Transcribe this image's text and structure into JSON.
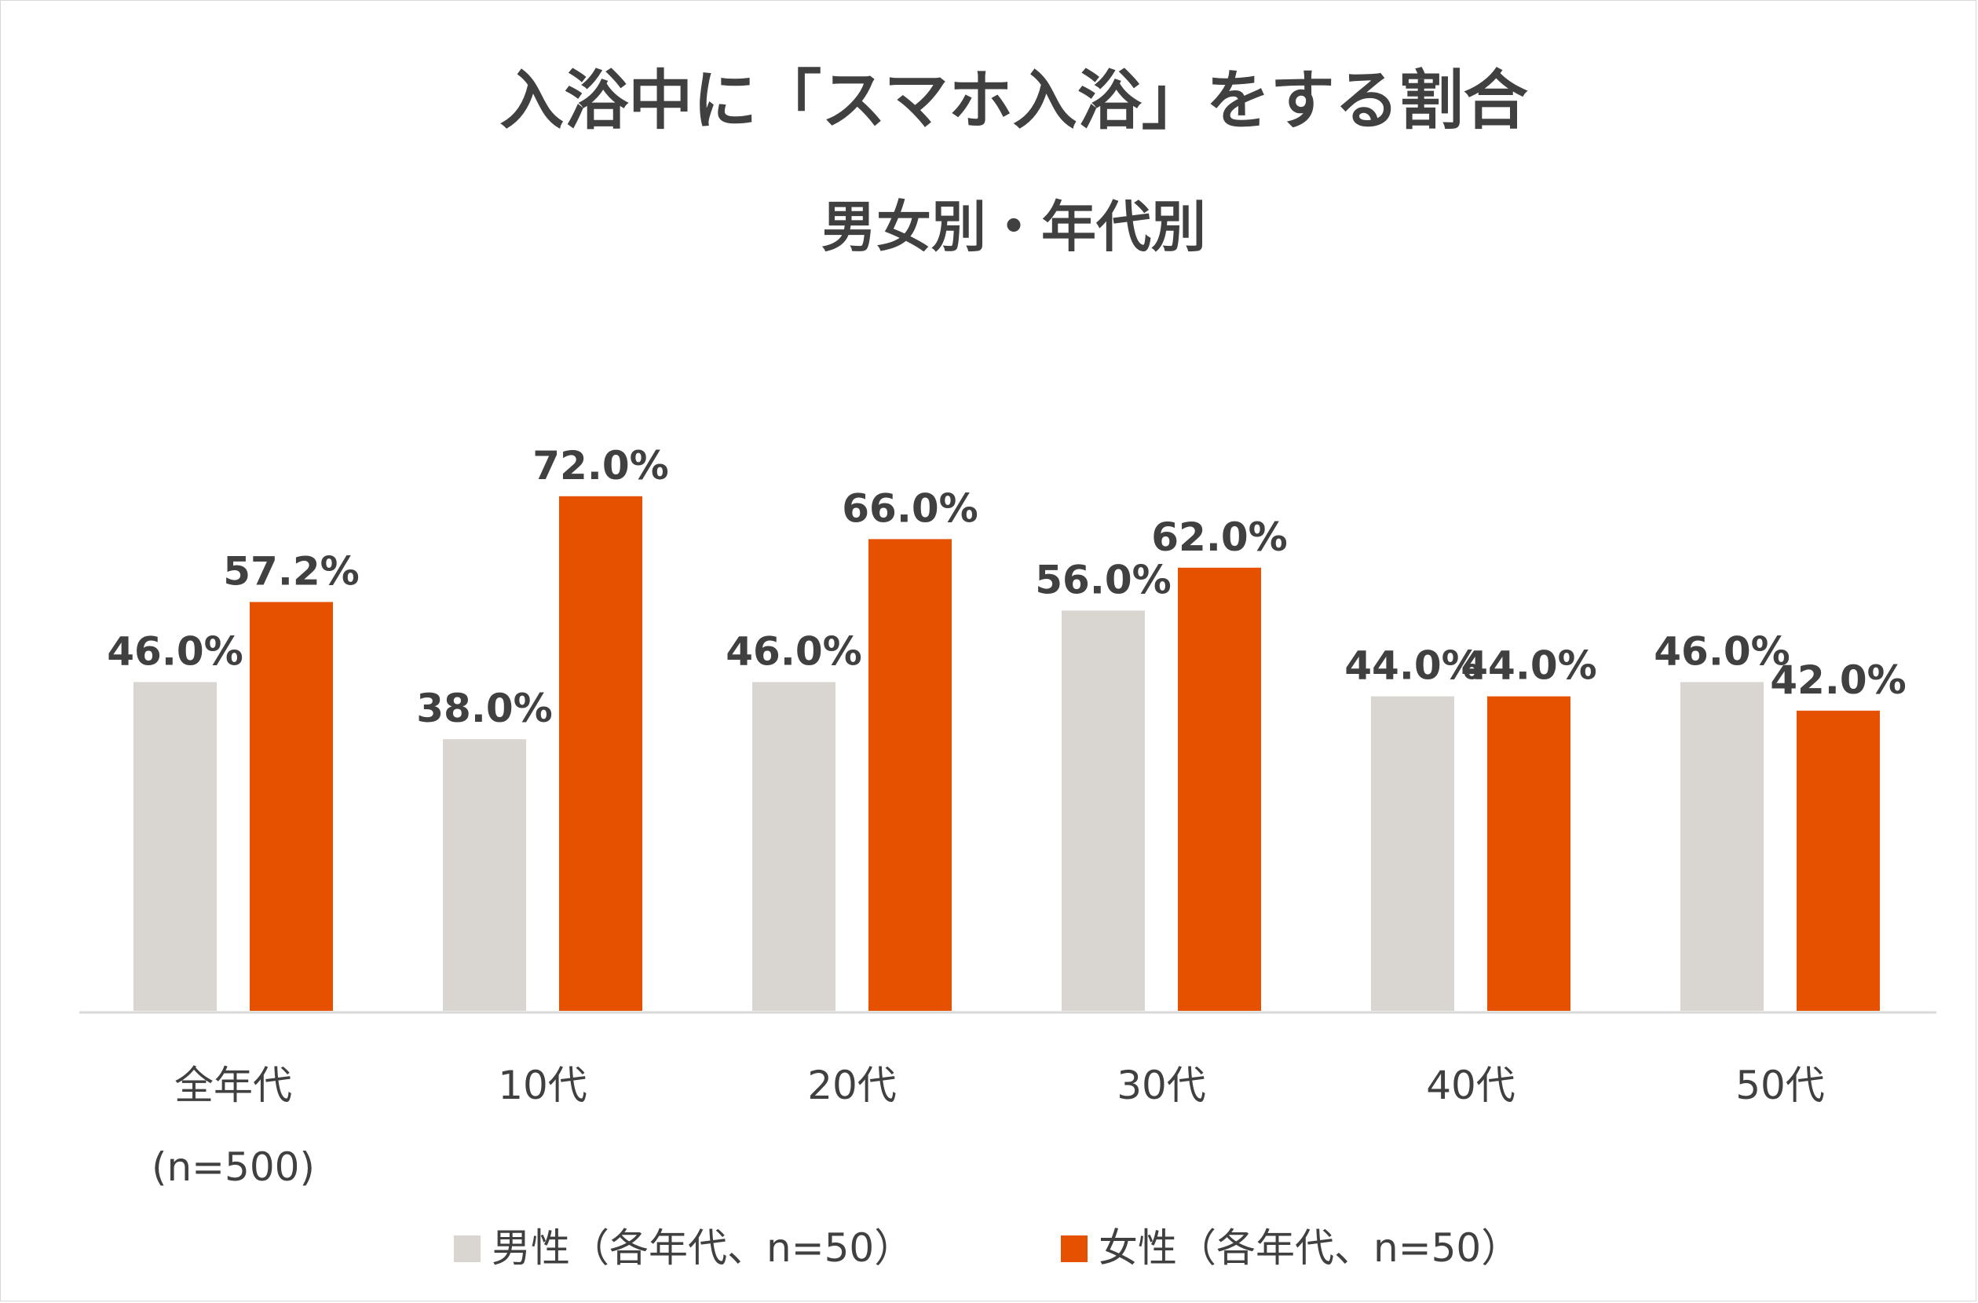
{
  "chart_data": {
    "type": "bar",
    "title": "入浴中に「スマホ入浴」をする割合",
    "subtitle": "男女別・年代別",
    "categories": [
      [
        "全年代",
        "(n=500)"
      ],
      [
        "10代"
      ],
      [
        "20代"
      ],
      [
        "30代"
      ],
      [
        "40代"
      ],
      [
        "50代"
      ]
    ],
    "series": [
      {
        "name": "男性（各年代、n=50）",
        "color": "#d9d5d0",
        "values": [
          46.0,
          38.0,
          46.0,
          56.0,
          44.0,
          46.0
        ],
        "labels": [
          "46.0%",
          "38.0%",
          "46.0%",
          "56.0%",
          "44.0%",
          "46.0%"
        ]
      },
      {
        "name": "女性（各年代、n=50）",
        "color": "#e65100",
        "values": [
          57.2,
          72.0,
          66.0,
          62.0,
          44.0,
          42.0
        ],
        "labels": [
          "57.2%",
          "72.0%",
          "66.0%",
          "62.0%",
          "44.0%",
          "42.0%"
        ]
      }
    ],
    "ylim": [
      0,
      100
    ],
    "grid": false,
    "legend": "bottom",
    "axis_color": "#d9d9d9"
  }
}
